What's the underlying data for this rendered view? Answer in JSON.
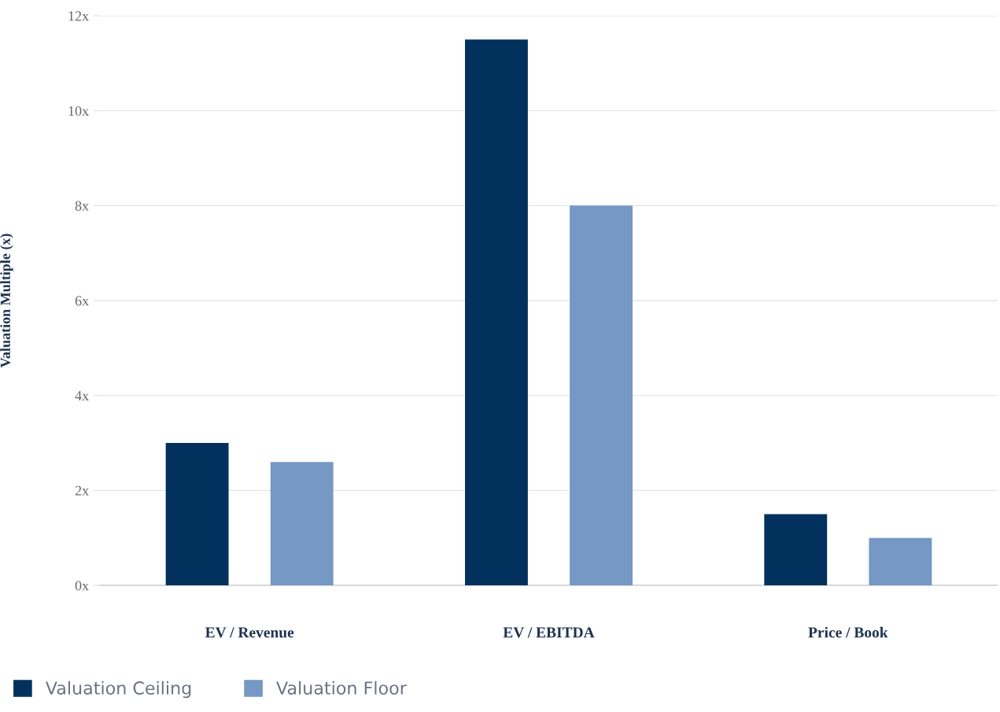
{
  "chart_data": {
    "type": "bar",
    "categories": [
      "EV / Revenue",
      "EV / EBITDA",
      "Price / Book"
    ],
    "series": [
      {
        "name": "Valuation Ceiling",
        "color": "#01315c",
        "values": [
          3.0,
          11.5,
          1.5
        ]
      },
      {
        "name": "Valuation Floor",
        "color": "#7598c4",
        "values": [
          2.6,
          8.0,
          1.0
        ]
      }
    ],
    "ylabel": "Valuation Multiple (x)",
    "ylim": [
      0,
      12
    ],
    "yticks": [
      {
        "value": 0,
        "label": "0x"
      },
      {
        "value": 2,
        "label": "2x"
      },
      {
        "value": 4,
        "label": "4x"
      },
      {
        "value": 6,
        "label": "6x"
      },
      {
        "value": 8,
        "label": "8x"
      },
      {
        "value": 10,
        "label": "10x"
      },
      {
        "value": 12,
        "label": "12x"
      }
    ],
    "grid": "y",
    "legend": "bottom left"
  }
}
